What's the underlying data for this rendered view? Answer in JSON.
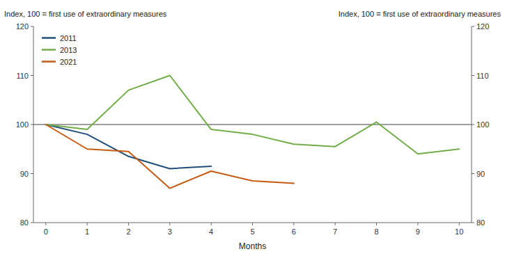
{
  "chart_data": {
    "type": "line",
    "xlabel": "Months",
    "ylabel": "Index, 100 = first use of extraordinary measures",
    "y2label": "Index, 100 = first use of extraordinary measures",
    "series": [
      {
        "name": "2011",
        "color": "#1f4e79",
        "x": [
          0,
          1,
          2,
          3,
          4
        ],
        "values": [
          100,
          98,
          93.5,
          91,
          91.5
        ]
      },
      {
        "name": "2013",
        "color": "#70ad47",
        "x": [
          0,
          1,
          2,
          3,
          4,
          5,
          6,
          7,
          8,
          9,
          10
        ],
        "values": [
          100,
          99,
          107,
          110,
          99,
          98,
          96,
          95.5,
          100.5,
          94,
          95
        ]
      },
      {
        "name": "2021",
        "color": "#c55a11",
        "x": [
          0,
          1,
          2,
          3,
          4,
          5,
          6
        ],
        "values": [
          100,
          95,
          94.5,
          87,
          90.5,
          88.5,
          88
        ]
      }
    ],
    "xlim": [
      -0.3,
      10.3
    ],
    "xticks": [
      0,
      1,
      2,
      3,
      4,
      5,
      6,
      7,
      8,
      9,
      10
    ],
    "ylim": [
      80,
      120
    ],
    "yticks": [
      80,
      90,
      100,
      110,
      120
    ],
    "y2lim": [
      80,
      120
    ],
    "y2ticks": [
      80,
      90,
      100,
      110,
      120
    ],
    "reference_line": 100,
    "legend": "upper left",
    "grid": false
  }
}
